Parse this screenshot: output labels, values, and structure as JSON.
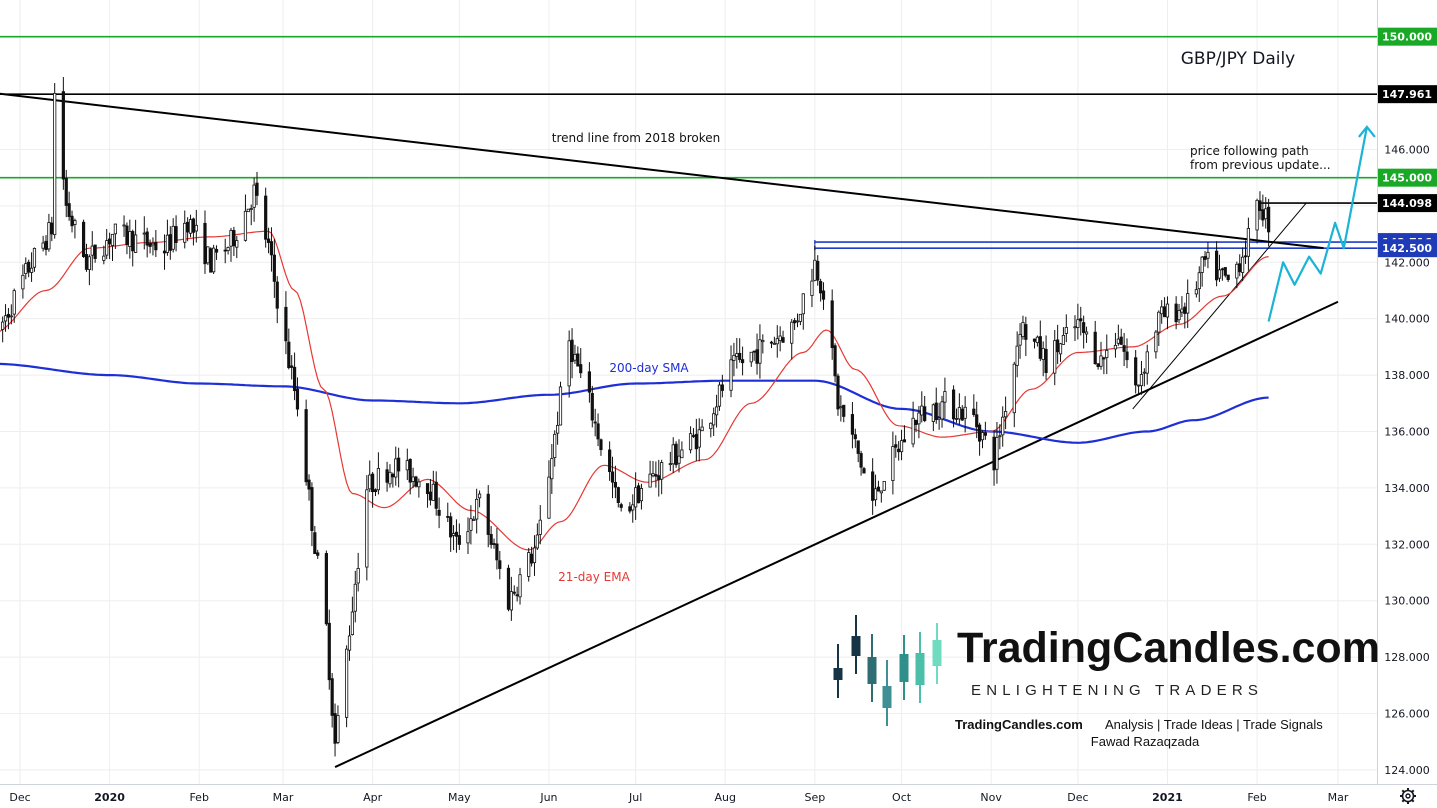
{
  "chart_data": {
    "type": "candlestick",
    "title": "GBP/JPY Daily",
    "ylim": [
      123.5,
      151.3
    ],
    "y_ticks": [
      124,
      126,
      128,
      130,
      132,
      134,
      136,
      138,
      140,
      142,
      144,
      146,
      150
    ],
    "y_tick_labels": [
      "124.000",
      "126.000",
      "128.000",
      "130.000",
      "132.000",
      "134.000",
      "136.000",
      "138.000",
      "140.000",
      "142.000",
      "144.000",
      "146.000",
      "150.000"
    ],
    "x_labels": [
      {
        "label": "Dec",
        "bold": false,
        "date": "2019-12-01"
      },
      {
        "label": "2020",
        "bold": true,
        "date": "2020-01-01"
      },
      {
        "label": "Feb",
        "bold": false,
        "date": "2020-02-01"
      },
      {
        "label": "Mar",
        "bold": false,
        "date": "2020-03-01"
      },
      {
        "label": "Apr",
        "bold": false,
        "date": "2020-04-01"
      },
      {
        "label": "May",
        "bold": false,
        "date": "2020-05-01"
      },
      {
        "label": "Jun",
        "bold": false,
        "date": "2020-06-01"
      },
      {
        "label": "Jul",
        "bold": false,
        "date": "2020-07-01"
      },
      {
        "label": "Aug",
        "bold": false,
        "date": "2020-08-01"
      },
      {
        "label": "Sep",
        "bold": false,
        "date": "2020-09-01"
      },
      {
        "label": "Oct",
        "bold": false,
        "date": "2020-10-01"
      },
      {
        "label": "Nov",
        "bold": false,
        "date": "2020-11-01"
      },
      {
        "label": "Dec",
        "bold": false,
        "date": "2020-12-01"
      },
      {
        "label": "2021",
        "bold": true,
        "date": "2021-01-01"
      },
      {
        "label": "Feb",
        "bold": false,
        "date": "2021-02-01"
      },
      {
        "label": "Mar",
        "bold": false,
        "date": "2021-03-01"
      }
    ],
    "price_path": [
      [
        "2019-11-22",
        139.2
      ],
      [
        "2019-12-04",
        141.8
      ],
      [
        "2019-12-12",
        143.2
      ],
      [
        "2019-12-13",
        147.961
      ],
      [
        "2019-12-17",
        144.0
      ],
      [
        "2019-12-24",
        142.0
      ],
      [
        "2020-01-02",
        143.0
      ],
      [
        "2020-01-10",
        142.8
      ],
      [
        "2020-01-20",
        142.5
      ],
      [
        "2020-01-28",
        143.5
      ],
      [
        "2020-02-05",
        142.0
      ],
      [
        "2020-02-12",
        142.7
      ],
      [
        "2020-02-20",
        144.5
      ],
      [
        "2020-02-25",
        142.5
      ],
      [
        "2020-03-02",
        139.0
      ],
      [
        "2020-03-06",
        137.0
      ],
      [
        "2020-03-12",
        132.0
      ],
      [
        "2020-03-16",
        129.0
      ],
      [
        "2020-03-19",
        124.9
      ],
      [
        "2020-03-24",
        129.0
      ],
      [
        "2020-03-30",
        134.0
      ],
      [
        "2020-04-08",
        134.8
      ],
      [
        "2020-04-20",
        134.2
      ],
      [
        "2020-04-30",
        132.0
      ],
      [
        "2020-05-08",
        133.5
      ],
      [
        "2020-05-18",
        130.0
      ],
      [
        "2020-05-28",
        132.0
      ],
      [
        "2020-06-04",
        136.5
      ],
      [
        "2020-06-08",
        139.2
      ],
      [
        "2020-06-15",
        137.0
      ],
      [
        "2020-06-26",
        133.0
      ],
      [
        "2020-07-03",
        134.0
      ],
      [
        "2020-07-13",
        135.0
      ],
      [
        "2020-07-24",
        136.0
      ],
      [
        "2020-08-03",
        138.2
      ],
      [
        "2020-08-14",
        139.0
      ],
      [
        "2020-08-25",
        139.8
      ],
      [
        "2020-09-01",
        142.0
      ],
      [
        "2020-09-04",
        141.0
      ],
      [
        "2020-09-09",
        137.0
      ],
      [
        "2020-09-15",
        135.5
      ],
      [
        "2020-09-21",
        133.5
      ],
      [
        "2020-09-25",
        134.5
      ],
      [
        "2020-10-06",
        136.5
      ],
      [
        "2020-10-16",
        137.0
      ],
      [
        "2020-10-26",
        136.5
      ],
      [
        "2020-11-02",
        135.0
      ],
      [
        "2020-11-09",
        138.5
      ],
      [
        "2020-11-11",
        139.8
      ],
      [
        "2020-11-20",
        138.5
      ],
      [
        "2020-12-01",
        139.8
      ],
      [
        "2020-12-09",
        138.5
      ],
      [
        "2020-12-15",
        139.5
      ],
      [
        "2020-12-21",
        137.5
      ],
      [
        "2020-12-29",
        140.0
      ],
      [
        "2021-01-08",
        140.5
      ],
      [
        "2021-01-14",
        142.0
      ],
      [
        "2021-01-22",
        141.3
      ],
      [
        "2021-01-28",
        142.5
      ],
      [
        "2021-02-02",
        144.098
      ],
      [
        "2021-02-05",
        143.4
      ]
    ],
    "ema21": [
      [
        "2019-11-22",
        139.5
      ],
      [
        "2019-12-10",
        141.0
      ],
      [
        "2019-12-25",
        142.5
      ],
      [
        "2020-01-15",
        142.7
      ],
      [
        "2020-02-05",
        142.9
      ],
      [
        "2020-02-25",
        143.1
      ],
      [
        "2020-03-05",
        141.0
      ],
      [
        "2020-03-15",
        137.5
      ],
      [
        "2020-03-25",
        133.8
      ],
      [
        "2020-04-05",
        133.3
      ],
      [
        "2020-04-20",
        134.3
      ],
      [
        "2020-05-05",
        133.2
      ],
      [
        "2020-05-25",
        131.8
      ],
      [
        "2020-06-05",
        132.8
      ],
      [
        "2020-06-20",
        134.8
      ],
      [
        "2020-07-05",
        134.2
      ],
      [
        "2020-07-25",
        135.0
      ],
      [
        "2020-08-10",
        137.0
      ],
      [
        "2020-08-28",
        138.8
      ],
      [
        "2020-09-05",
        139.6
      ],
      [
        "2020-09-15",
        138.2
      ],
      [
        "2020-09-30",
        136.2
      ],
      [
        "2020-10-15",
        135.8
      ],
      [
        "2020-11-01",
        136.0
      ],
      [
        "2020-11-15",
        137.5
      ],
      [
        "2020-12-01",
        138.8
      ],
      [
        "2020-12-20",
        139.0
      ],
      [
        "2021-01-05",
        139.8
      ],
      [
        "2021-01-20",
        140.8
      ],
      [
        "2021-02-05",
        142.2
      ]
    ],
    "sma200": [
      [
        "2019-11-22",
        138.4
      ],
      [
        "2020-01-01",
        138.0
      ],
      [
        "2020-02-01",
        137.7
      ],
      [
        "2020-03-01",
        137.6
      ],
      [
        "2020-04-01",
        137.1
      ],
      [
        "2020-05-01",
        137.0
      ],
      [
        "2020-06-01",
        137.3
      ],
      [
        "2020-07-01",
        137.7
      ],
      [
        "2020-08-01",
        137.8
      ],
      [
        "2020-09-01",
        137.8
      ],
      [
        "2020-10-01",
        136.8
      ],
      [
        "2020-11-01",
        136.0
      ],
      [
        "2020-12-01",
        135.6
      ],
      [
        "2020-12-25",
        136.0
      ],
      [
        "2021-01-10",
        136.4
      ],
      [
        "2021-02-05",
        137.2
      ]
    ],
    "series": [
      {
        "name": "21-day EMA",
        "color": "#e53935"
      },
      {
        "name": "200-day SMA",
        "color": "#1e2fd6"
      }
    ],
    "trend_lines": [
      {
        "from": [
          "2019-11-22",
          148.0
        ],
        "to": [
          "2021-02-24",
          142.5
        ],
        "color": "#000000"
      },
      {
        "from": [
          "2020-03-19",
          124.1
        ],
        "to": [
          "2021-03-01",
          140.6
        ],
        "color": "#000000"
      },
      {
        "from": [
          "2020-12-20",
          136.8
        ],
        "to": [
          "2021-02-18",
          144.1
        ],
        "color": "#000000"
      }
    ],
    "horizontal_levels": [
      {
        "value": 150.0,
        "label": "150.000",
        "color": "#1aa827",
        "tag": "#1aa827"
      },
      {
        "value": 147.961,
        "label": "147.961",
        "color": "#000000",
        "tag": "#000000"
      },
      {
        "value": 145.0,
        "label": "145.000",
        "color": "#1aa827",
        "tag": "#1aa827"
      },
      {
        "value": 144.098,
        "label": "144.098",
        "color": "#000000",
        "tag": "#000000",
        "start": "2021-02-01"
      },
      {
        "value": 142.716,
        "label": "142.716",
        "color": "#1e3ec8",
        "tag": "#1f3bb8",
        "start": "2020-09-01"
      },
      {
        "value": 142.5,
        "label": "142.500",
        "color": "#1e3ec8",
        "tag": "#1f3bb8",
        "start": "2020-09-01"
      }
    ],
    "projection_path": [
      [
        "2021-02-05",
        139.9
      ],
      [
        "2021-02-10",
        142.0
      ],
      [
        "2021-02-14",
        141.2
      ],
      [
        "2021-02-19",
        142.2
      ],
      [
        "2021-02-23",
        141.6
      ],
      [
        "2021-02-28",
        143.4
      ],
      [
        "2021-03-03",
        142.5
      ],
      [
        "2021-03-11",
        146.8
      ]
    ],
    "annotations": {
      "trend": "trend line from 2018 broken",
      "sma": "200-day SMA",
      "ema": "21-day EMA",
      "path_line1": "price following path",
      "path_line2": "from previous update..."
    }
  },
  "logo": {
    "brand": "TradingCandles.com",
    "tagline": "ENLIGHTENING TRADERS",
    "footer_brand": "TradingCandles.com",
    "footer_services": "Analysis | Trade Ideas | Trade Signals",
    "footer_author": "Fawad Razaqzada"
  },
  "icons": {
    "settings": "gear-icon"
  },
  "colors": {
    "candle": "#111111",
    "projection": "#1bb3d6",
    "grid": "#eeeeee"
  }
}
